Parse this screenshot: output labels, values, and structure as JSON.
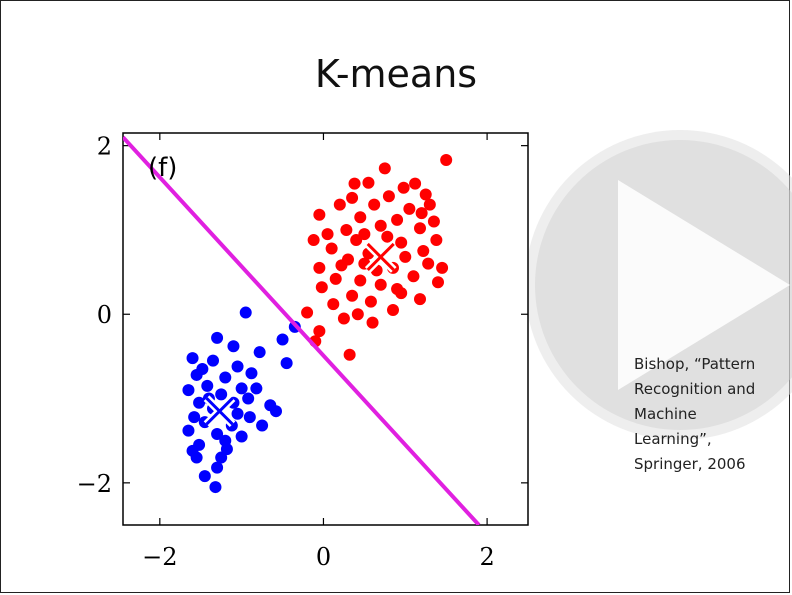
{
  "slide": {
    "title": "K-means",
    "citation": "Bishop, “Pattern\nRecognition and\nMachine\nLearning”,\nSpringer, 2006"
  },
  "overlay": {
    "icon": "play-icon"
  },
  "chart_data": {
    "type": "scatter",
    "panel_label": "(f)",
    "xlim": [
      -2.45,
      2.5
    ],
    "ylim": [
      -2.5,
      2.15
    ],
    "xticks": [
      -2,
      0,
      2
    ],
    "yticks": [
      -2,
      0,
      2
    ],
    "xtick_labels": [
      "−2",
      "0",
      "2"
    ],
    "ytick_labels": [
      "−2",
      "0",
      "2"
    ],
    "grid": false,
    "decision_boundary": {
      "color": "#e020e0",
      "from": [
        -2.45,
        2.1
      ],
      "to": [
        1.9,
        -2.5
      ]
    },
    "series": [
      {
        "color": "#ff0000",
        "centroid": [
          0.7,
          0.68
        ],
        "points": [
          [
            1.5,
            1.83
          ],
          [
            0.75,
            1.73
          ],
          [
            0.55,
            1.56
          ],
          [
            0.98,
            1.5
          ],
          [
            1.25,
            1.42
          ],
          [
            0.35,
            1.38
          ],
          [
            0.8,
            1.4
          ],
          [
            1.05,
            1.25
          ],
          [
            0.2,
            1.3
          ],
          [
            -0.05,
            1.18
          ],
          [
            0.62,
            1.3
          ],
          [
            1.35,
            1.1
          ],
          [
            0.45,
            1.15
          ],
          [
            0.9,
            1.12
          ],
          [
            1.18,
            1.02
          ],
          [
            0.28,
            1.0
          ],
          [
            0.7,
            1.05
          ],
          [
            -0.12,
            0.88
          ],
          [
            0.4,
            0.88
          ],
          [
            1.38,
            0.88
          ],
          [
            0.1,
            0.78
          ],
          [
            0.95,
            0.85
          ],
          [
            1.22,
            0.75
          ],
          [
            0.55,
            0.72
          ],
          [
            0.3,
            0.65
          ],
          [
            -0.05,
            0.55
          ],
          [
            1.45,
            0.55
          ],
          [
            0.85,
            0.55
          ],
          [
            0.15,
            0.42
          ],
          [
            1.1,
            0.45
          ],
          [
            0.45,
            0.4
          ],
          [
            1.4,
            0.38
          ],
          [
            0.7,
            0.35
          ],
          [
            -0.02,
            0.32
          ],
          [
            0.35,
            0.22
          ],
          [
            0.95,
            0.25
          ],
          [
            1.18,
            0.18
          ],
          [
            0.58,
            0.15
          ],
          [
            0.12,
            0.12
          ],
          [
            0.85,
            0.05
          ],
          [
            0.42,
            0.0
          ],
          [
            -0.2,
            0.02
          ],
          [
            0.25,
            -0.05
          ],
          [
            0.6,
            -0.1
          ],
          [
            -0.05,
            -0.2
          ],
          [
            -0.1,
            -0.32
          ],
          [
            0.32,
            -0.48
          ],
          [
            1.3,
            1.3
          ],
          [
            0.5,
            0.95
          ],
          [
            1.0,
            0.68
          ],
          [
            0.22,
            0.58
          ],
          [
            0.78,
            0.92
          ],
          [
            1.28,
            0.6
          ],
          [
            0.65,
            0.52
          ],
          [
            0.05,
            0.95
          ],
          [
            1.12,
            1.55
          ],
          [
            0.38,
            1.55
          ],
          [
            0.9,
            0.3
          ],
          [
            0.5,
            0.6
          ],
          [
            1.2,
            1.2
          ]
        ]
      },
      {
        "color": "#0000ff",
        "centroid": [
          -1.27,
          -1.15
        ],
        "points": [
          [
            -0.95,
            0.02
          ],
          [
            -0.35,
            -0.15
          ],
          [
            -1.3,
            -0.28
          ],
          [
            -0.5,
            -0.3
          ],
          [
            -1.1,
            -0.38
          ],
          [
            -0.78,
            -0.45
          ],
          [
            -1.6,
            -0.52
          ],
          [
            -1.35,
            -0.55
          ],
          [
            -0.45,
            -0.58
          ],
          [
            -1.05,
            -0.62
          ],
          [
            -1.55,
            -0.72
          ],
          [
            -1.2,
            -0.75
          ],
          [
            -0.88,
            -0.7
          ],
          [
            -1.42,
            -0.85
          ],
          [
            -1.0,
            -0.88
          ],
          [
            -1.65,
            -0.9
          ],
          [
            -1.25,
            -0.95
          ],
          [
            -0.92,
            -1.0
          ],
          [
            -1.52,
            -1.05
          ],
          [
            -1.1,
            -1.05
          ],
          [
            -0.65,
            -1.08
          ],
          [
            -1.35,
            -1.12
          ],
          [
            -1.58,
            -1.22
          ],
          [
            -0.9,
            -1.22
          ],
          [
            -0.58,
            -1.15
          ],
          [
            -1.45,
            -1.28
          ],
          [
            -1.12,
            -1.32
          ],
          [
            -0.75,
            -1.32
          ],
          [
            -1.65,
            -1.38
          ],
          [
            -1.3,
            -1.42
          ],
          [
            -1.0,
            -1.45
          ],
          [
            -1.52,
            -1.55
          ],
          [
            -1.18,
            -1.6
          ],
          [
            -1.55,
            -1.7
          ],
          [
            -1.3,
            -1.82
          ],
          [
            -1.45,
            -1.92
          ],
          [
            -1.32,
            -2.05
          ],
          [
            -1.2,
            -1.5
          ],
          [
            -1.4,
            -1.0
          ],
          [
            -1.05,
            -1.18
          ],
          [
            -1.6,
            -1.62
          ],
          [
            -1.25,
            -1.7
          ],
          [
            -0.82,
            -0.88
          ],
          [
            -1.48,
            -0.65
          ]
        ]
      },
      {
        "color": "#ff0000",
        "points": []
      }
    ]
  }
}
